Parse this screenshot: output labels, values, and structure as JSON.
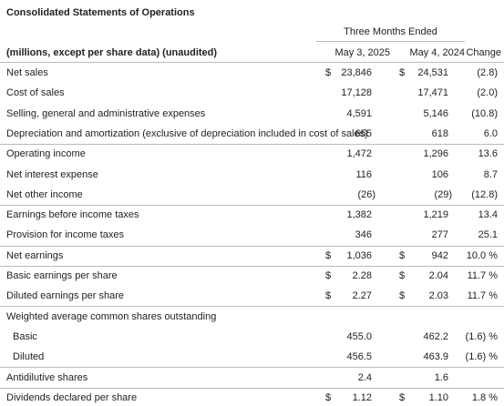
{
  "title": "Consolidated Statements of Operations",
  "header": {
    "group": "Three Months Ended",
    "label": "(millions, except per share data) (unaudited)",
    "col1": "May 3, 2025",
    "col2": "May 4, 2024",
    "change": "Change"
  },
  "sections": [
    {
      "rows": [
        {
          "label": "Net sales",
          "cur1": "$",
          "v1": "23,846",
          "cur2": "$",
          "v2": "24,531",
          "change": "(2.8)"
        },
        {
          "label": "Cost of sales",
          "v1": "17,128",
          "v2": "17,471",
          "change": "(2.0)"
        },
        {
          "label": "Selling, general and administrative expenses",
          "v1": "4,591",
          "v2": "5,146",
          "change": "(10.8)"
        },
        {
          "label": "Depreciation and amortization (exclusive of depreciation included in cost of sales)",
          "v1": "655",
          "v2": "618",
          "change": "6.0"
        }
      ]
    },
    {
      "rows": [
        {
          "label": "Operating income",
          "v1": "1,472",
          "v2": "1,296",
          "change": "13.6"
        },
        {
          "label": "Net interest expense",
          "v1": "116",
          "v2": "106",
          "change": "8.7"
        },
        {
          "label": "Net other income",
          "v1": "(26)",
          "v2": "(29)",
          "change": "(12.8)"
        }
      ]
    },
    {
      "rows": [
        {
          "label": "Earnings before income taxes",
          "v1": "1,382",
          "v2": "1,219",
          "change": "13.4"
        },
        {
          "label": "Provision for income taxes",
          "v1": "346",
          "v2": "277",
          "change": "25.1"
        }
      ]
    },
    {
      "rows": [
        {
          "label": "Net earnings",
          "cur1": "$",
          "v1": "1,036",
          "cur2": "$",
          "v2": "942",
          "change": "10.0 %"
        }
      ]
    },
    {
      "rows": [
        {
          "label": "Basic earnings per share",
          "cur1": "$",
          "v1": "2.28",
          "cur2": "$",
          "v2": "2.04",
          "change": "11.7 %"
        },
        {
          "label": "Diluted earnings per share",
          "cur1": "$",
          "v1": "2.27",
          "cur2": "$",
          "v2": "2.03",
          "change": "11.7 %"
        }
      ]
    },
    {
      "rows": [
        {
          "label": "Weighted average common shares outstanding",
          "rows": [
            {
              "label": "Basic",
              "v1": "455.0",
              "v2": "462.2",
              "change": "(1.6) %"
            },
            {
              "label": "Diluted",
              "v1": "456.5",
              "v2": "463.9",
              "change": "(1.6) %"
            }
          ]
        }
      ]
    },
    {
      "rows": [
        {
          "label": "Antidilutive shares",
          "v1": "2.4",
          "v2": "1.6"
        }
      ]
    },
    {
      "rows": [
        {
          "label": "Dividends declared per share",
          "cur1": "$",
          "v1": "1.12",
          "cur2": "$",
          "v2": "1.10",
          "change": "1.8 %"
        }
      ]
    }
  ]
}
